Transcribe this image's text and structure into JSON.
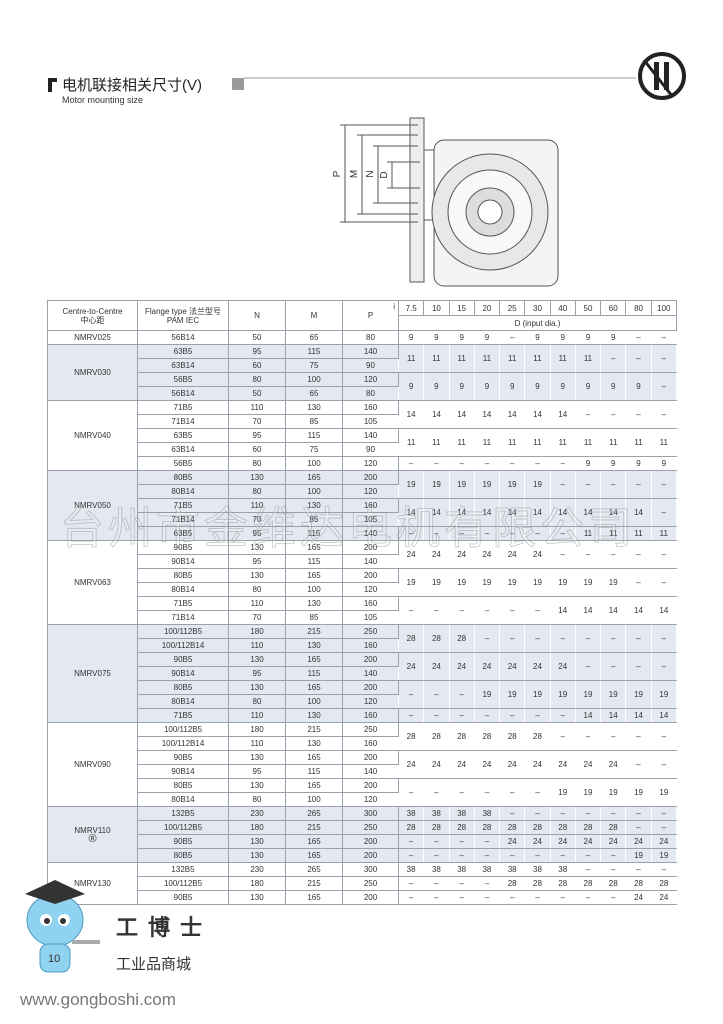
{
  "header": {
    "title": "电机联接相关尺寸(V)",
    "subtitle": "Motor mounting size"
  },
  "diagram": {
    "labels": [
      "P",
      "M",
      "N",
      "D"
    ]
  },
  "table": {
    "head": {
      "centre": "Centre-to-Centre",
      "centre_cn": "中心距",
      "flange": "Flange type 法兰型号",
      "flange_sub": "PAM IEC",
      "n": "N",
      "m": "M",
      "p": "P",
      "i": "i",
      "ratios": [
        "7.5",
        "10",
        "15",
        "20",
        "25",
        "30",
        "40",
        "50",
        "60",
        "80",
        "100"
      ],
      "d": "D (input dia.)"
    },
    "groups": [
      {
        "model": "NMRV025",
        "rows": [
          {
            "flange": "56B14",
            "n": "50",
            "m": "65",
            "p": "80",
            "d": [
              "9",
              "9",
              "9",
              "9",
              "–",
              "9",
              "9",
              "9",
              "9",
              "–",
              "–"
            ]
          }
        ]
      },
      {
        "model": "NMRV030",
        "rows": [
          {
            "flange": "63B5",
            "n": "95",
            "m": "115",
            "p": "140",
            "d": [
              "11",
              "11",
              "11",
              "11",
              "11",
              "11",
              "11",
              "11",
              "–",
              "–",
              "–"
            ]
          },
          {
            "flange": "63B14",
            "n": "60",
            "m": "75",
            "p": "90"
          },
          {
            "flange": "56B5",
            "n": "80",
            "m": "100",
            "p": "120",
            "d": [
              "9",
              "9",
              "9",
              "9",
              "9",
              "9",
              "9",
              "9",
              "9",
              "9",
              "–"
            ]
          },
          {
            "flange": "56B14",
            "n": "50",
            "m": "65",
            "p": "80"
          }
        ]
      },
      {
        "model": "NMRV040",
        "rows": [
          {
            "flange": "71B5",
            "n": "110",
            "m": "130",
            "p": "160",
            "d": [
              "14",
              "14",
              "14",
              "14",
              "14",
              "14",
              "14",
              "–",
              "–",
              "–",
              "–"
            ]
          },
          {
            "flange": "71B14",
            "n": "70",
            "m": "85",
            "p": "105"
          },
          {
            "flange": "63B5",
            "n": "95",
            "m": "115",
            "p": "140",
            "d": [
              "11",
              "11",
              "11",
              "11",
              "11",
              "11",
              "11",
              "11",
              "11",
              "11",
              "11"
            ]
          },
          {
            "flange": "63B14",
            "n": "60",
            "m": "75",
            "p": "90"
          },
          {
            "flange": "56B5",
            "n": "80",
            "m": "100",
            "p": "120",
            "d": [
              "–",
              "–",
              "–",
              "–",
              "–",
              "–",
              "–",
              "9",
              "9",
              "9",
              "9"
            ]
          }
        ]
      },
      {
        "model": "NMRV050",
        "rows": [
          {
            "flange": "80B5",
            "n": "130",
            "m": "165",
            "p": "200",
            "d": [
              "19",
              "19",
              "19",
              "19",
              "19",
              "19",
              "–",
              "–",
              "–",
              "–",
              "–"
            ]
          },
          {
            "flange": "80B14",
            "n": "80",
            "m": "100",
            "p": "120"
          },
          {
            "flange": "71B5",
            "n": "110",
            "m": "130",
            "p": "160",
            "d": [
              "14",
              "14",
              "14",
              "14",
              "14",
              "14",
              "14",
              "14",
              "14",
              "14",
              "–"
            ]
          },
          {
            "flange": "71B14",
            "n": "70",
            "m": "85",
            "p": "105"
          },
          {
            "flange": "63B5",
            "n": "95",
            "m": "115",
            "p": "140",
            "d": [
              "–",
              "–",
              "–",
              "–",
              "–",
              "–",
              "–",
              "11",
              "11",
              "11",
              "11"
            ]
          }
        ]
      },
      {
        "model": "NMRV063",
        "rows": [
          {
            "flange": "90B5",
            "n": "130",
            "m": "165",
            "p": "200",
            "d": [
              "24",
              "24",
              "24",
              "24",
              "24",
              "24",
              "–",
              "–",
              "–",
              "–",
              "–"
            ]
          },
          {
            "flange": "90B14",
            "n": "95",
            "m": "115",
            "p": "140"
          },
          {
            "flange": "80B5",
            "n": "130",
            "m": "165",
            "p": "200",
            "d": [
              "19",
              "19",
              "19",
              "19",
              "19",
              "19",
              "19",
              "19",
              "19",
              "–",
              "–"
            ]
          },
          {
            "flange": "80B14",
            "n": "80",
            "m": "100",
            "p": "120"
          },
          {
            "flange": "71B5",
            "n": "110",
            "m": "130",
            "p": "160",
            "d": [
              "–",
              "–",
              "–",
              "–",
              "–",
              "–",
              "14",
              "14",
              "14",
              "14",
              "14"
            ]
          },
          {
            "flange": "71B14",
            "n": "70",
            "m": "85",
            "p": "105"
          }
        ]
      },
      {
        "model": "NMRV075",
        "rows": [
          {
            "flange": "100/112B5",
            "n": "180",
            "m": "215",
            "p": "250",
            "d": [
              "28",
              "28",
              "28",
              "–",
              "–",
              "–",
              "–",
              "–",
              "–",
              "–",
              "–"
            ]
          },
          {
            "flange": "100/112B14",
            "n": "110",
            "m": "130",
            "p": "160"
          },
          {
            "flange": "90B5",
            "n": "130",
            "m": "165",
            "p": "200",
            "d": [
              "24",
              "24",
              "24",
              "24",
              "24",
              "24",
              "24",
              "–",
              "–",
              "–",
              "–"
            ]
          },
          {
            "flange": "90B14",
            "n": "95",
            "m": "115",
            "p": "140"
          },
          {
            "flange": "80B5",
            "n": "130",
            "m": "165",
            "p": "200",
            "d": [
              "–",
              "–",
              "–",
              "19",
              "19",
              "19",
              "19",
              "19",
              "19",
              "19",
              "19"
            ]
          },
          {
            "flange": "80B14",
            "n": "80",
            "m": "100",
            "p": "120"
          },
          {
            "flange": "71B5",
            "n": "110",
            "m": "130",
            "p": "160",
            "d": [
              "–",
              "–",
              "–",
              "–",
              "–",
              "–",
              "–",
              "14",
              "14",
              "14",
              "14"
            ]
          }
        ]
      },
      {
        "model": "NMRV090",
        "rows": [
          {
            "flange": "100/112B5",
            "n": "180",
            "m": "215",
            "p": "250",
            "d": [
              "28",
              "28",
              "28",
              "28",
              "28",
              "28",
              "–",
              "–",
              "–",
              "–",
              "–"
            ]
          },
          {
            "flange": "100/112B14",
            "n": "110",
            "m": "130",
            "p": "160"
          },
          {
            "flange": "90B5",
            "n": "130",
            "m": "165",
            "p": "200",
            "d": [
              "24",
              "24",
              "24",
              "24",
              "24",
              "24",
              "24",
              "24",
              "24",
              "–",
              "–"
            ]
          },
          {
            "flange": "90B14",
            "n": "95",
            "m": "115",
            "p": "140"
          },
          {
            "flange": "80B5",
            "n": "130",
            "m": "165",
            "p": "200",
            "d": [
              "–",
              "–",
              "–",
              "–",
              "–",
              "–",
              "19",
              "19",
              "19",
              "19",
              "19"
            ]
          },
          {
            "flange": "80B14",
            "n": "80",
            "m": "100",
            "p": "120"
          }
        ]
      },
      {
        "model": "NMRV110",
        "mark": "®",
        "rows": [
          {
            "flange": "132B5",
            "n": "230",
            "m": "265",
            "p": "300",
            "d": [
              "38",
              "38",
              "38",
              "38",
              "–",
              "–",
              "–",
              "–",
              "–",
              "–",
              "–"
            ]
          },
          {
            "flange": "100/112B5",
            "n": "180",
            "m": "215",
            "p": "250",
            "d": [
              "28",
              "28",
              "28",
              "28",
              "28",
              "28",
              "28",
              "28",
              "28",
              "–",
              "–"
            ]
          },
          {
            "flange": "90B5",
            "n": "130",
            "m": "165",
            "p": "200",
            "d": [
              "–",
              "–",
              "–",
              "–",
              "24",
              "24",
              "24",
              "24",
              "24",
              "24",
              "24"
            ]
          },
          {
            "flange": "80B5",
            "n": "130",
            "m": "165",
            "p": "200",
            "d": [
              "–",
              "–",
              "–",
              "–",
              "–",
              "–",
              "–",
              "–",
              "–",
              "19",
              "19"
            ]
          }
        ]
      },
      {
        "model": "NMRV130",
        "rows": [
          {
            "flange": "132B5",
            "n": "230",
            "m": "265",
            "p": "300",
            "d": [
              "38",
              "38",
              "38",
              "38",
              "38",
              "38",
              "38",
              "–",
              "–",
              "–",
              "–"
            ]
          },
          {
            "flange": "100/112B5",
            "n": "180",
            "m": "215",
            "p": "250",
            "d": [
              "–",
              "–",
              "–",
              "–",
              "28",
              "28",
              "28",
              "28",
              "28",
              "28",
              "28"
            ]
          },
          {
            "flange": "90B5",
            "n": "130",
            "m": "165",
            "p": "200",
            "d": [
              "–",
              "–",
              "–",
              "–",
              "–",
              "–",
              "–",
              "–",
              "–",
              "24",
              "24"
            ]
          }
        ]
      }
    ]
  },
  "watermark": "台州市金维达电机有限公司",
  "footer": {
    "page": "10",
    "brand": "工博士",
    "brand_sub": "工业品商城",
    "url": "www.gongboshi.com"
  }
}
